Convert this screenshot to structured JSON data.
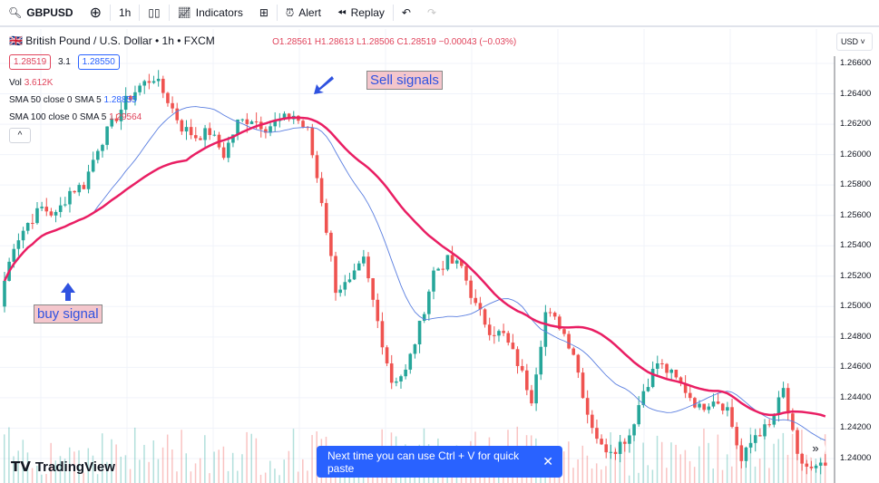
{
  "toolbar": {
    "symbol": "GBPUSD",
    "interval": "1h",
    "indicators": "Indicators",
    "alert": "Alert",
    "replay": "Replay"
  },
  "legend": {
    "title": "British Pound / U.S. Dollar • 1h • FXCM",
    "ohlc": "O1.28561 H1.28613 L1.28506 C1.28519 −0.00043 (−0.03%)",
    "bid": "1.28519",
    "spread": "3.1",
    "ask": "1.28550",
    "vol_label": "Vol",
    "vol_value": "3.612K",
    "sma50_label": "SMA 50 close 0 SMA 5",
    "sma50_value": "1.28855",
    "sma100_label": "SMA 100 close 0 SMA 5",
    "sma100_value": "1.29564"
  },
  "currency": "USD",
  "annotations": {
    "sell": "Sell signals",
    "buy": "buy signal"
  },
  "toast": {
    "text": "Next time you can use Ctrl + V for quick paste"
  },
  "logo": "TradingView",
  "colors": {
    "up": "#26a69a",
    "down": "#ef5350",
    "sma50": "#5b7fe0",
    "sma100": "#e91e63",
    "toast": "#2962ff"
  },
  "chart_data": {
    "type": "candlestick",
    "y_ticks": [
      "1.26600",
      "1.26400",
      "1.26200",
      "1.26000",
      "1.25800",
      "1.25600",
      "1.25400",
      "1.25200",
      "1.25000",
      "1.24800",
      "1.24600",
      "1.24400",
      "1.24200",
      "1.24000"
    ],
    "ylim": [
      1.239,
      1.267
    ],
    "closes": [
      1.2505,
      1.2541,
      1.2555,
      1.2565,
      1.256,
      1.2576,
      1.258,
      1.2605,
      1.262,
      1.2635,
      1.2645,
      1.2651,
      1.2636,
      1.2618,
      1.2612,
      1.2615,
      1.26,
      1.2621,
      1.2624,
      1.2618,
      1.2622,
      1.2626,
      1.2615,
      1.257,
      1.2512,
      1.2515,
      1.253,
      1.249,
      1.2451,
      1.2457,
      1.2487,
      1.2523,
      1.253,
      1.2526,
      1.25,
      1.2485,
      1.2481,
      1.2463,
      1.244,
      1.2496,
      1.2488,
      1.247,
      1.243,
      1.2407,
      1.2407,
      1.2416,
      1.2445,
      1.2463,
      1.2455,
      1.2445,
      1.2433,
      1.244,
      1.2433,
      1.2398,
      1.2416,
      1.2421,
      1.2445,
      1.24,
      1.2392,
      1.2395
    ]
  }
}
